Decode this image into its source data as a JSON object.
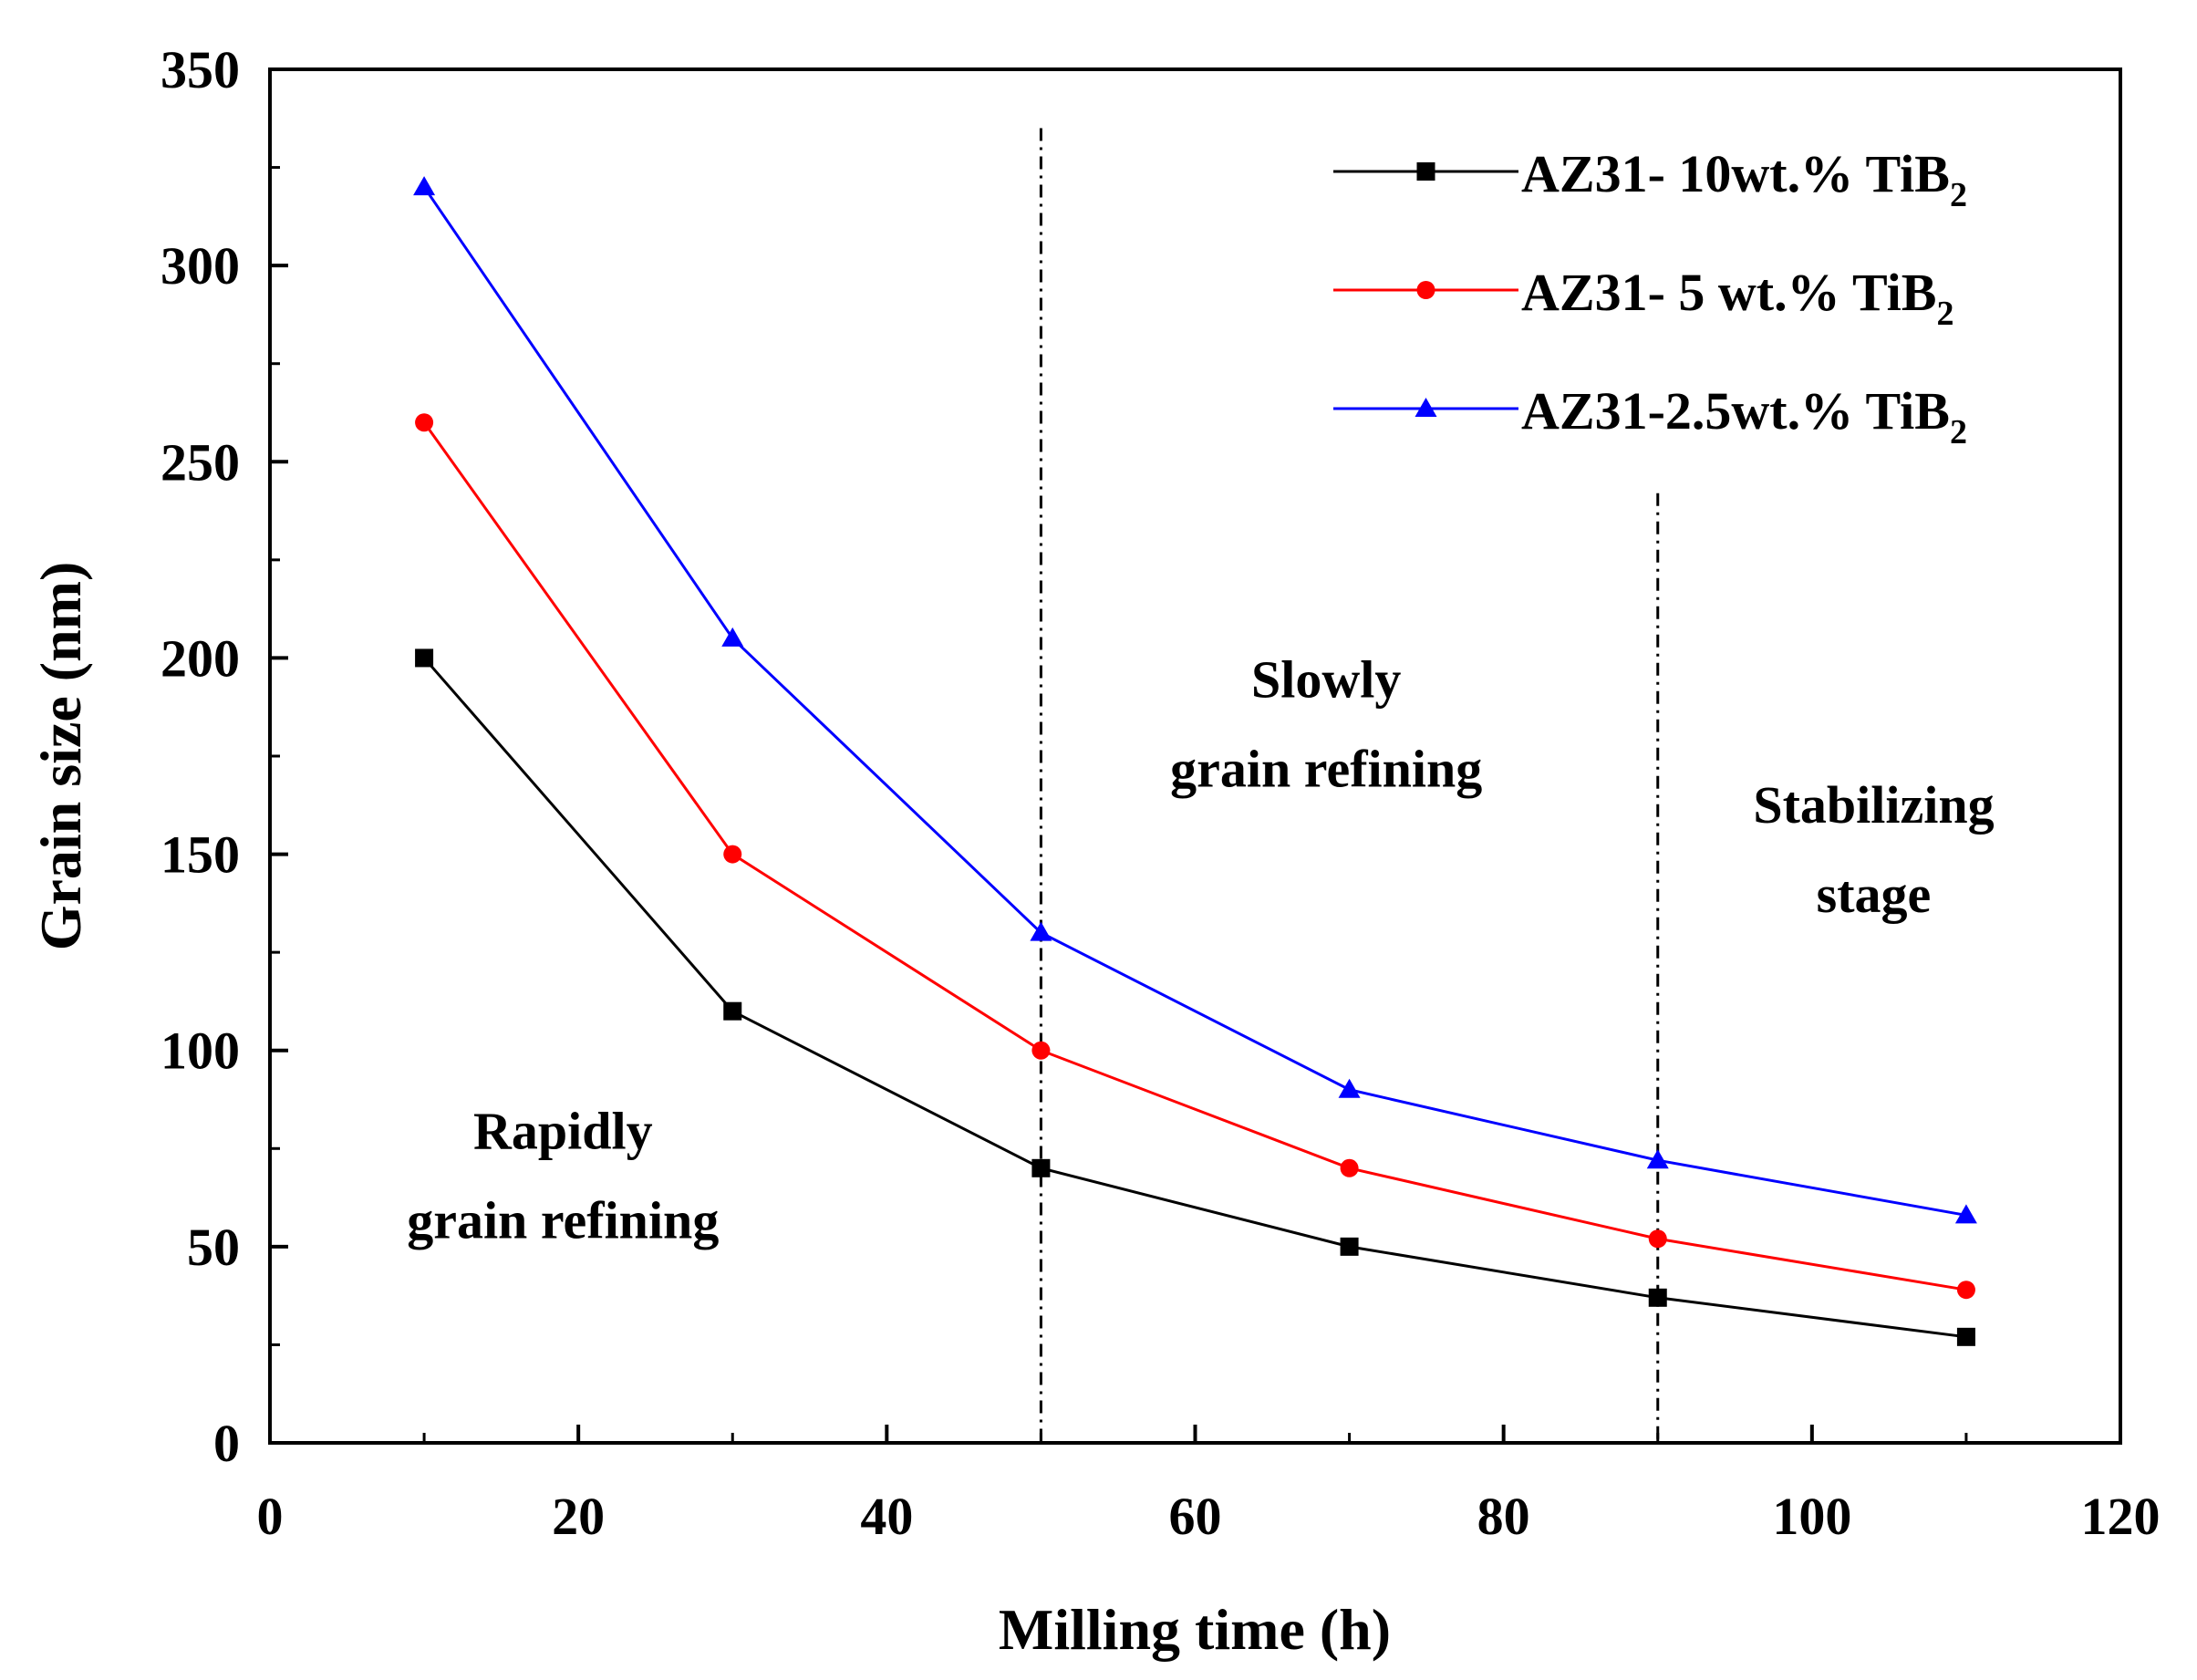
{
  "chart_data": {
    "type": "line",
    "title": "",
    "xlabel": "Milling time (h)",
    "ylabel": "Grain size (nm)",
    "xlim": [
      0,
      120
    ],
    "ylim": [
      0,
      350
    ],
    "xticks": [
      0,
      20,
      40,
      60,
      80,
      100,
      120
    ],
    "yticks": [
      0,
      50,
      100,
      150,
      200,
      250,
      300,
      350
    ],
    "x": [
      10,
      30,
      50,
      70,
      90,
      110
    ],
    "series": [
      {
        "name": "AZ31- 10wt.% TiB",
        "sub": "2",
        "color": "#000000",
        "marker": "square",
        "values": [
          200,
          110,
          70,
          50,
          37,
          27
        ]
      },
      {
        "name": "AZ31-  5 wt.% TiB",
        "sub": "2",
        "color": "#ff0000",
        "marker": "circle",
        "values": [
          260,
          150,
          100,
          70,
          52,
          39
        ]
      },
      {
        "name": "AZ31-2.5wt.% TiB",
        "sub": "2",
        "color": "#0000ff",
        "marker": "triangle",
        "values": [
          320,
          205,
          130,
          90,
          72,
          58
        ]
      }
    ],
    "vlines": [
      50,
      90
    ],
    "annotations": [
      {
        "lines": [
          "Rapidly",
          "grain refining"
        ],
        "x": 19,
        "y": 75
      },
      {
        "lines": [
          "Slowly",
          "grain refining"
        ],
        "x": 68.5,
        "y": 190
      },
      {
        "lines": [
          "Stabilizing",
          "stage"
        ],
        "x": 104,
        "y": 158
      }
    ],
    "legend_position": "top-right",
    "grid": false
  }
}
